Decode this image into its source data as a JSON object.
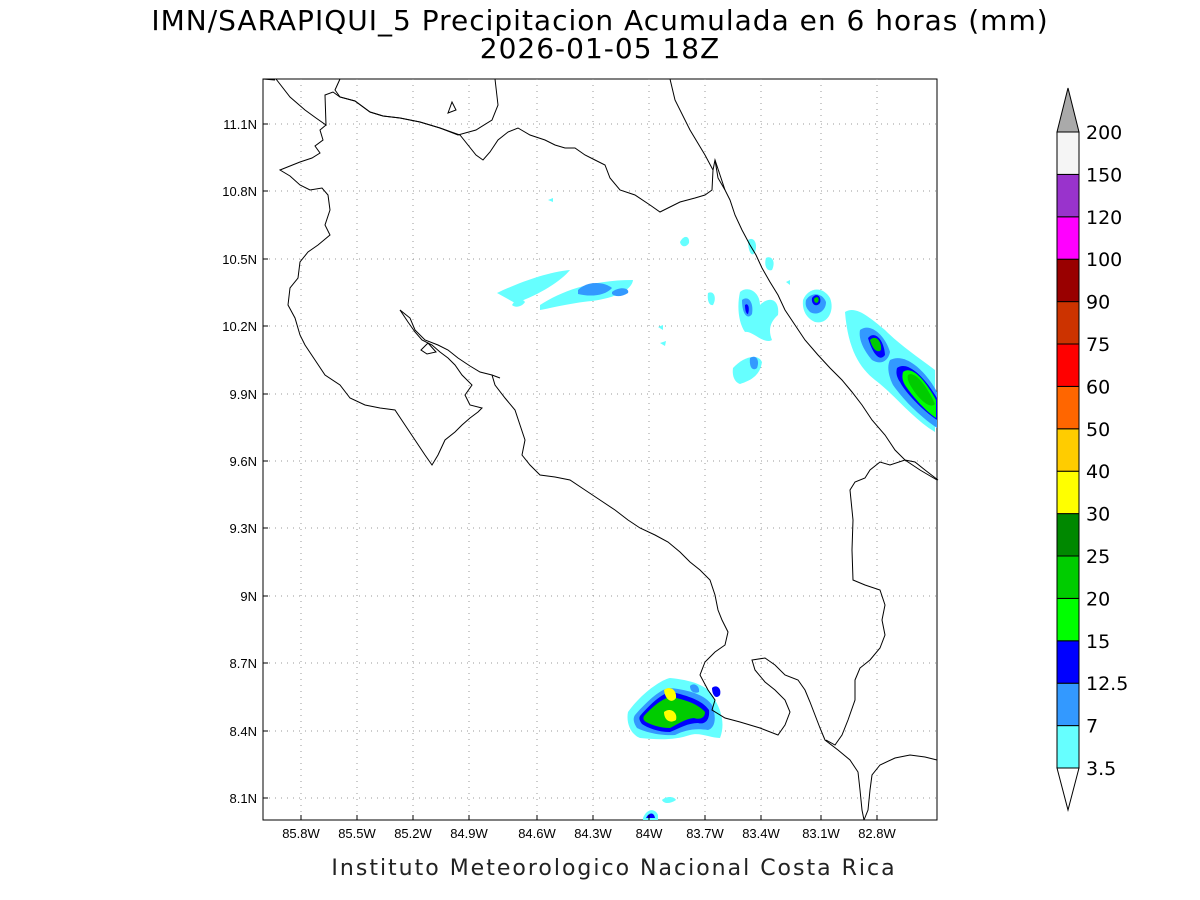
{
  "title_line1": "IMN/SARAPIQUI_5 Precipitacion Acumulada en 6 horas (mm)",
  "title_line2": "2026-01-05 18Z",
  "credit": "Instituto Meteorologico Nacional Costa Rica",
  "lat_ticks": [
    "11.1N",
    "10.8N",
    "10.5N",
    "10.2N",
    "9.9N",
    "9.6N",
    "9.3N",
    "9N",
    "8.7N",
    "8.4N",
    "8.1N"
  ],
  "lon_ticks": [
    "85.8W",
    "85.5W",
    "85.2W",
    "84.9W",
    "84.6W",
    "84.3W",
    "84W",
    "83.7W",
    "83.4W",
    "83.1W",
    "82.8W"
  ],
  "colorbar": {
    "labels": [
      "3.5",
      "7",
      "12.5",
      "15",
      "20",
      "25",
      "30",
      "40",
      "50",
      "60",
      "75",
      "90",
      "100",
      "120",
      "150",
      "200"
    ],
    "colors": [
      "#66ffff",
      "#3399ff",
      "#0000ff",
      "#00ff00",
      "#00cc00",
      "#008800",
      "#ffff00",
      "#ffcc00",
      "#ff6600",
      "#ff0000",
      "#cc3300",
      "#990000",
      "#ff00ff",
      "#9933cc",
      "#f5f5f5",
      "#aaaaaa"
    ]
  }
}
